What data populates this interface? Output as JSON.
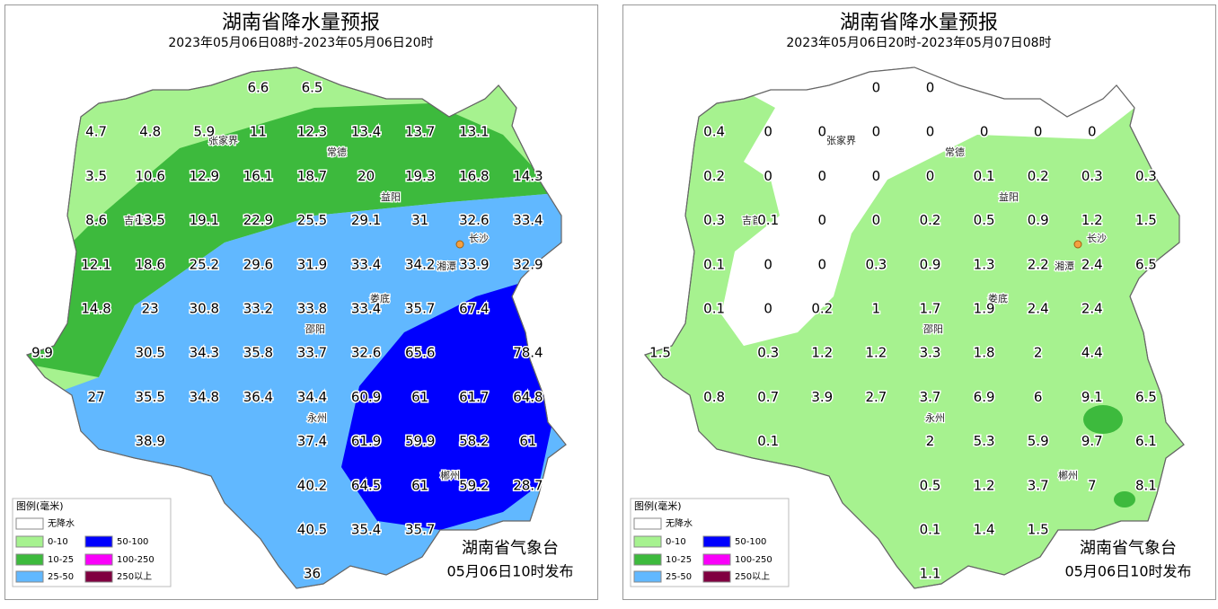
{
  "maps": [
    {
      "title": "湖南省降水量预报",
      "subtitle": "2023年05月06日08时-2023年05月06日20时",
      "highlight_color": "#ff0000",
      "labels": [
        6.6,
        6.5,
        4.7,
        4.8,
        5.9,
        11,
        12.3,
        13.4,
        13.7,
        13.1,
        3.5,
        10.6,
        12.9,
        16.1,
        18.7,
        20,
        19.3,
        16.8,
        14.3,
        8.6,
        13.5,
        19.1,
        22.9,
        25.5,
        29.1,
        31,
        32.6,
        33.4,
        12.1,
        18.6,
        25.2,
        29.6,
        31.9,
        33.4,
        34.2,
        33.9,
        32.9,
        14.8,
        23,
        30.8,
        33.2,
        33.8,
        33.4,
        35.7,
        67.4,
        9.9,
        30.5,
        34.3,
        35.8,
        33.7,
        32.6,
        65.6,
        78.4,
        27,
        35.5,
        34.8,
        36.4,
        34.4,
        60.9,
        61,
        61.7,
        64.8,
        38.9,
        37.4,
        61.9,
        59.9,
        58.2,
        61,
        40.2,
        64.5,
        61,
        59.2,
        28.7,
        40.5,
        35.4,
        35.7,
        36
      ],
      "issuer": "湖南省气象台",
      "issue_time": "05月06日10时发布"
    },
    {
      "title": "湖南省降水量预报",
      "subtitle": "2023年05月06日20时-2023年05月07日08时",
      "labels": [
        0,
        0,
        0.4,
        0,
        0,
        0,
        0,
        0,
        0,
        0,
        0.2,
        0,
        0,
        0,
        0,
        0.1,
        0.2,
        0.3,
        0.3,
        0.3,
        0.1,
        0,
        0,
        0.2,
        0.5,
        0.9,
        1.2,
        1.5,
        0.1,
        0,
        0,
        0.3,
        0.9,
        1.3,
        2.2,
        2.4,
        6.5,
        0.1,
        0,
        0.2,
        1,
        1.7,
        1.9,
        2.4,
        2.4,
        1.5,
        0.3,
        1.2,
        1.2,
        3.3,
        1.8,
        2,
        4.4,
        0.8,
        0.7,
        3.9,
        2.7,
        3.7,
        6.9,
        6,
        9.1,
        6.5,
        0.1,
        2,
        5.3,
        5.9,
        9.7,
        6.1,
        0.5,
        1.2,
        3.7,
        7,
        8.1,
        0.1,
        1.4,
        1.5,
        1.1
      ],
      "issuer": "湖南省气象台",
      "issue_time": "05月06日10时发布"
    }
  ],
  "cities": [
    "张家界",
    "常德",
    "益阳",
    "吉首",
    "长沙",
    "湘潭",
    "娄底",
    "邵阳",
    "永州",
    "郴州"
  ],
  "legend": {
    "title": "图例(毫米)",
    "items": [
      {
        "label": "无降水",
        "color": "#ffffff"
      },
      {
        "label": "0-10",
        "color": "#a6f28f"
      },
      {
        "label": "10-25",
        "color": "#3dba3d"
      },
      {
        "label": "25-50",
        "color": "#61b8ff"
      },
      {
        "label": "50-100",
        "color": "#0000fe"
      },
      {
        "label": "100-250",
        "color": "#fa00fa"
      },
      {
        "label": "250以上",
        "color": "#800040"
      }
    ]
  }
}
